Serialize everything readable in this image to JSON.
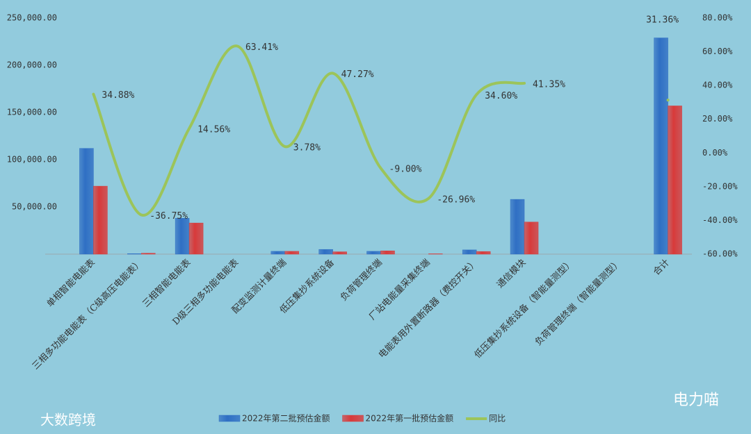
{
  "chart_data": {
    "type": "bar-line",
    "categories": [
      "单相智能电能表",
      "三相多功能电能表（C级高压电能表）",
      "三相智能电能表",
      "D级三相多功能电能表",
      "配变监测计量终端",
      "低压集抄系统设备",
      "负荷管理终端",
      "厂站电能量采集终端",
      "电能表用外置断路器（费控开关）",
      "通信模块",
      "低压集抄系统设备（智能量测型）",
      "负荷管理终端（智能量测型）",
      "合计"
    ],
    "series": [
      {
        "name": "2022年第二批预估金额",
        "color": "#2f6fc4",
        "values": [
          112000,
          500,
          38000,
          0,
          3000,
          5000,
          3000,
          0,
          4500,
          58000,
          0,
          0,
          229000
        ]
      },
      {
        "name": "2022年第一批预估金额",
        "color": "#d83a3a",
        "values": [
          72000,
          1000,
          33000,
          0,
          3000,
          2500,
          3500,
          400,
          2800,
          34000,
          0,
          0,
          157000
        ]
      },
      {
        "name": "同比",
        "color": "#9cc45a",
        "axis": "y2",
        "values": [
          34.88,
          -36.75,
          14.56,
          63.41,
          3.78,
          47.27,
          -9.0,
          -26.96,
          34.6,
          41.35,
          null,
          null,
          31.36
        ],
        "value_labels": [
          "34.88%",
          "-36.75%",
          "14.56%",
          "63.41%",
          "3.78%",
          "47.27%",
          "-9.00%",
          "-26.96%",
          "34.60%",
          "41.35%",
          null,
          null,
          "31.36%"
        ]
      }
    ],
    "ylim": [
      0,
      250000
    ],
    "yticks": [
      {
        "value": 0,
        "label": "-"
      },
      {
        "value": 50000,
        "label": "50,000.00"
      },
      {
        "value": 100000,
        "label": "100,000.00"
      },
      {
        "value": 150000,
        "label": "150,000.00"
      },
      {
        "value": 200000,
        "label": "200,000.00"
      },
      {
        "value": 250000,
        "label": "250,000.00"
      }
    ],
    "y2lim": [
      -60,
      80
    ],
    "y2ticks": [
      {
        "value": -60,
        "label": "-60.00%"
      },
      {
        "value": -40,
        "label": "-40.00%"
      },
      {
        "value": -20,
        "label": "-20.00%"
      },
      {
        "value": 0,
        "label": "0.00%"
      },
      {
        "value": 20,
        "label": "20.00%"
      },
      {
        "value": 40,
        "label": "40.00%"
      },
      {
        "value": 60,
        "label": "60.00%"
      },
      {
        "value": 80,
        "label": "80.00%"
      }
    ],
    "legend": "bottom",
    "watermarks": [
      "大数跨境",
      "电力喵"
    ]
  }
}
